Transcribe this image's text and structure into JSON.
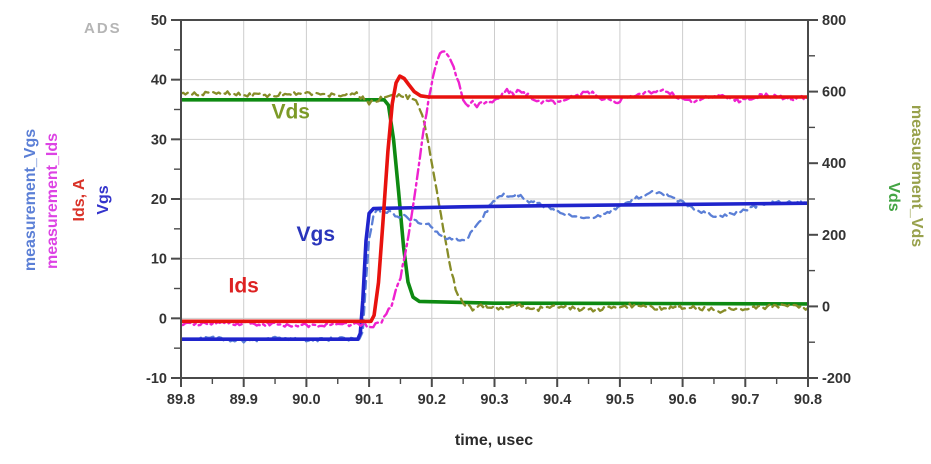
{
  "logo": "ADS",
  "axis_titles": {
    "left": [
      {
        "text": "measurement_Vgs",
        "color": "#5b7fd6"
      },
      {
        "text": "measurement_Ids",
        "color": "#dd44e4"
      },
      {
        "text": "Ids, A",
        "color": "#d93228"
      },
      {
        "text": "Vgs",
        "color": "#3434cc"
      }
    ],
    "right": [
      {
        "text": "measurement_Vds",
        "color": "#98a14c"
      },
      {
        "text": "Vds",
        "color": "#44a544"
      }
    ],
    "x": "time, usec"
  },
  "chart_data": {
    "type": "line",
    "title": "",
    "xlabel": "time, usec",
    "x_range": [
      89.8,
      90.8
    ],
    "x_ticks": [
      "89.8",
      "89.9",
      "90.0",
      "90.1",
      "90.2",
      "90.3",
      "90.4",
      "90.5",
      "90.6",
      "90.7",
      "90.8"
    ],
    "x_minor_step": 0.05,
    "left_axis": {
      "label": "measurement_Vgs / measurement_Ids / Ids, A / Vgs",
      "range": [
        -10,
        50
      ],
      "ticks": [
        50,
        40,
        30,
        20,
        10,
        0,
        -10
      ],
      "minor_step": 5
    },
    "right_axis": {
      "label": "measurement_Vds / Vds",
      "range": [
        -200,
        800
      ],
      "ticks": [
        800,
        600,
        400,
        200,
        0,
        -200
      ],
      "minor_step": 100
    },
    "grid": true,
    "frame_color": "#4a4a4a",
    "grid_color": "#cdcdcd",
    "tick_label_color": "#333333",
    "annotations": [
      {
        "text": "Vds",
        "color": "#7c9a27",
        "t": 89.975,
        "v": 33.5
      },
      {
        "text": "Vgs",
        "color": "#2a35bb",
        "t": 90.015,
        "v": 13.0
      },
      {
        "text": "Ids",
        "color": "#dd2222",
        "t": 89.9,
        "v": 4.3
      }
    ],
    "series": [
      {
        "id": "vds_sim",
        "name": "Vds (simulated)",
        "axis": "right",
        "color": "#0e8a12",
        "style": "solid",
        "width": 3.6,
        "noise": 0,
        "points": [
          [
            89.8,
            577
          ],
          [
            90.124,
            577
          ],
          [
            90.131,
            562
          ],
          [
            90.139,
            465
          ],
          [
            90.147,
            320
          ],
          [
            90.155,
            165
          ],
          [
            90.162,
            68
          ],
          [
            90.17,
            26
          ],
          [
            90.18,
            14
          ],
          [
            90.3,
            9
          ],
          [
            90.55,
            8
          ],
          [
            90.8,
            7
          ]
        ]
      },
      {
        "id": "vds_meas",
        "name": "measurement_Vds",
        "axis": "right",
        "color": "#878c28",
        "style": "dashed",
        "width": 2.3,
        "noise": 6,
        "points": [
          [
            89.8,
            593
          ],
          [
            89.86,
            597
          ],
          [
            89.92,
            589
          ],
          [
            89.98,
            595
          ],
          [
            90.04,
            591
          ],
          [
            90.08,
            596
          ],
          [
            90.1,
            566
          ],
          [
            90.112,
            575
          ],
          [
            90.125,
            586
          ],
          [
            90.14,
            590
          ],
          [
            90.155,
            588
          ],
          [
            90.168,
            582
          ],
          [
            90.178,
            568
          ],
          [
            90.188,
            515
          ],
          [
            90.198,
            425
          ],
          [
            90.208,
            325
          ],
          [
            90.218,
            225
          ],
          [
            90.228,
            125
          ],
          [
            90.238,
            48
          ],
          [
            90.25,
            8
          ],
          [
            90.265,
            -6
          ],
          [
            90.285,
            2
          ],
          [
            90.31,
            -8
          ],
          [
            90.34,
            3
          ],
          [
            90.37,
            -7
          ],
          [
            90.41,
            0
          ],
          [
            90.45,
            -10
          ],
          [
            90.49,
            -2
          ],
          [
            90.53,
            4
          ],
          [
            90.57,
            -7
          ],
          [
            90.61,
            -2
          ],
          [
            90.66,
            -12
          ],
          [
            90.71,
            -4
          ],
          [
            90.76,
            2
          ],
          [
            90.8,
            -4
          ]
        ]
      },
      {
        "id": "vgs_meas",
        "name": "measurement_Vgs",
        "axis": "left",
        "color": "#5b7fd6",
        "style": "dashed",
        "width": 2.3,
        "noise": 0.3,
        "points": [
          [
            89.8,
            -3.6
          ],
          [
            89.85,
            -3.3
          ],
          [
            89.9,
            -3.8
          ],
          [
            89.95,
            -3.4
          ],
          [
            90.0,
            -3.7
          ],
          [
            90.05,
            -3.4
          ],
          [
            90.085,
            -3.6
          ],
          [
            90.09,
            -2
          ],
          [
            90.095,
            6
          ],
          [
            90.1,
            13
          ],
          [
            90.107,
            17.5
          ],
          [
            90.115,
            18.3
          ],
          [
            90.125,
            17.6
          ],
          [
            90.135,
            18.0
          ],
          [
            90.145,
            17.0
          ],
          [
            90.155,
            17.4
          ],
          [
            90.165,
            16.2
          ],
          [
            90.175,
            16.6
          ],
          [
            90.185,
            15.6
          ],
          [
            90.195,
            15.9
          ],
          [
            90.205,
            14.8
          ],
          [
            90.215,
            13.8
          ],
          [
            90.225,
            13.2
          ],
          [
            90.235,
            13.6
          ],
          [
            90.245,
            12.8
          ],
          [
            90.255,
            13.4
          ],
          [
            90.265,
            14.6
          ],
          [
            90.275,
            16.0
          ],
          [
            90.285,
            17.6
          ],
          [
            90.295,
            19.2
          ],
          [
            90.305,
            20.2
          ],
          [
            90.315,
            20.8
          ],
          [
            90.325,
            20.3
          ],
          [
            90.335,
            20.9
          ],
          [
            90.345,
            20.2
          ],
          [
            90.355,
            19.4
          ],
          [
            90.365,
            19.8
          ],
          [
            90.375,
            19.0
          ],
          [
            90.39,
            18.4
          ],
          [
            90.405,
            17.8
          ],
          [
            90.42,
            17.2
          ],
          [
            90.435,
            16.9
          ],
          [
            90.45,
            16.7
          ],
          [
            90.465,
            17.2
          ],
          [
            90.48,
            17.8
          ],
          [
            90.5,
            18.8
          ],
          [
            90.52,
            19.9
          ],
          [
            90.54,
            20.8
          ],
          [
            90.555,
            21.3
          ],
          [
            90.57,
            20.9
          ],
          [
            90.585,
            20.2
          ],
          [
            90.6,
            19.4
          ],
          [
            90.615,
            18.6
          ],
          [
            90.63,
            17.8
          ],
          [
            90.645,
            17.3
          ],
          [
            90.66,
            17.0
          ],
          [
            90.675,
            17.4
          ],
          [
            90.69,
            17.9
          ],
          [
            90.71,
            18.6
          ],
          [
            90.73,
            19.2
          ],
          [
            90.75,
            19.6
          ],
          [
            90.77,
            19.4
          ],
          [
            90.8,
            19.5
          ]
        ]
      },
      {
        "id": "vgs_sim",
        "name": "Vgs (simulated)",
        "axis": "left",
        "color": "#1f24cc",
        "style": "solid",
        "width": 3.6,
        "noise": 0,
        "points": [
          [
            89.8,
            -3.5
          ],
          [
            90.082,
            -3.5
          ],
          [
            90.086,
            -2.5
          ],
          [
            90.09,
            3
          ],
          [
            90.095,
            13
          ],
          [
            90.1,
            17.6
          ],
          [
            90.107,
            18.4
          ],
          [
            90.15,
            18.5
          ],
          [
            90.25,
            18.7
          ],
          [
            90.4,
            18.9
          ],
          [
            90.6,
            19.1
          ],
          [
            90.8,
            19.3
          ]
        ]
      },
      {
        "id": "ids_meas",
        "name": "measurement_Ids",
        "axis": "left",
        "color": "#ee22cf",
        "style": "dashdot",
        "width": 2.4,
        "noise": 0.35,
        "points": [
          [
            89.8,
            -1.0
          ],
          [
            89.9,
            -0.8
          ],
          [
            90.0,
            -1.2
          ],
          [
            90.05,
            -0.9
          ],
          [
            90.09,
            -1.1
          ],
          [
            90.11,
            -1.2
          ],
          [
            90.12,
            -0.5
          ],
          [
            90.135,
            2
          ],
          [
            90.15,
            7
          ],
          [
            90.163,
            14
          ],
          [
            90.175,
            22
          ],
          [
            90.185,
            30
          ],
          [
            90.195,
            37
          ],
          [
            90.205,
            42
          ],
          [
            90.213,
            44.4
          ],
          [
            90.22,
            44.6
          ],
          [
            90.228,
            43.8
          ],
          [
            90.235,
            42
          ],
          [
            90.243,
            39.5
          ],
          [
            90.25,
            36.5
          ],
          [
            90.258,
            35.2
          ],
          [
            90.265,
            36.2
          ],
          [
            90.272,
            35.4
          ],
          [
            90.28,
            36.4
          ],
          [
            90.29,
            35.8
          ],
          [
            90.3,
            36.4
          ],
          [
            90.31,
            37.4
          ],
          [
            90.32,
            38.2
          ],
          [
            90.33,
            37.8
          ],
          [
            90.34,
            38.3
          ],
          [
            90.35,
            37.6
          ],
          [
            90.36,
            36.9
          ],
          [
            90.375,
            36.2
          ],
          [
            90.39,
            36.7
          ],
          [
            90.4,
            36.1
          ],
          [
            90.415,
            36.6
          ],
          [
            90.43,
            37.4
          ],
          [
            90.445,
            38.0
          ],
          [
            90.46,
            37.6
          ],
          [
            90.475,
            36.6
          ],
          [
            90.49,
            36.2
          ],
          [
            90.51,
            36.9
          ],
          [
            90.53,
            37.5
          ],
          [
            90.55,
            38.0
          ],
          [
            90.565,
            38.4
          ],
          [
            90.58,
            37.8
          ],
          [
            90.6,
            36.8
          ],
          [
            90.615,
            36.3
          ],
          [
            90.63,
            36.7
          ],
          [
            90.65,
            37.2
          ],
          [
            90.67,
            37.0
          ],
          [
            90.69,
            36.5
          ],
          [
            90.71,
            36.9
          ],
          [
            90.73,
            37.4
          ],
          [
            90.75,
            37.1
          ],
          [
            90.77,
            36.7
          ],
          [
            90.8,
            37.0
          ]
        ]
      },
      {
        "id": "ids_sim",
        "name": "Ids (simulated)",
        "axis": "left",
        "color": "#e8120e",
        "style": "solid",
        "width": 3.6,
        "noise": 0,
        "points": [
          [
            89.8,
            -0.5
          ],
          [
            90.103,
            -0.5
          ],
          [
            90.108,
            0.5
          ],
          [
            90.115,
            6
          ],
          [
            90.122,
            16
          ],
          [
            90.13,
            28
          ],
          [
            90.137,
            36
          ],
          [
            90.143,
            39.5
          ],
          [
            90.149,
            40.6
          ],
          [
            90.156,
            40.2
          ],
          [
            90.163,
            39.2
          ],
          [
            90.172,
            38.0
          ],
          [
            90.182,
            37.3
          ],
          [
            90.195,
            37.1
          ],
          [
            90.8,
            37.1
          ]
        ]
      }
    ]
  }
}
